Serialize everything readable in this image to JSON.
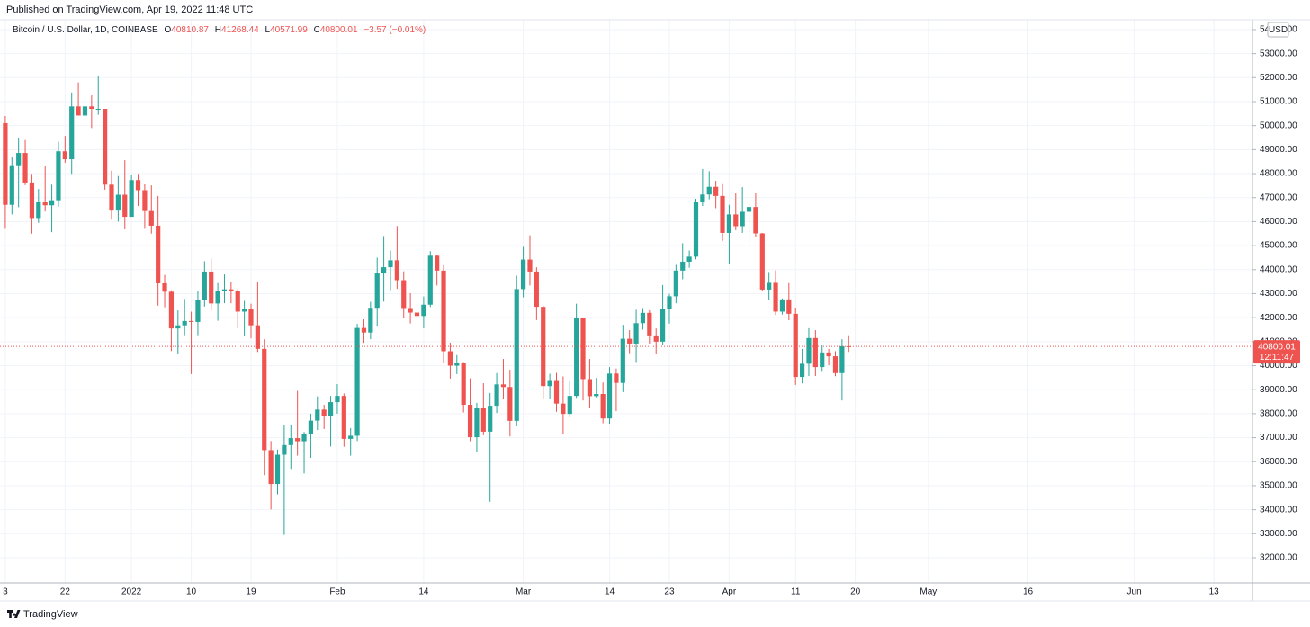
{
  "published": "Published on TradingView.com, Apr 19, 2022 11:48 UTC",
  "brand": "TradingView",
  "chart_data": {
    "type": "candlestick",
    "symbol": "Bitcoin / U.S. Dollar, 1D, COINBASE",
    "ohlc_letters": [
      "O",
      "H",
      "L",
      "C"
    ],
    "change_label": "−3.57 (−0.01%)",
    "currency": "USD",
    "countdown": "12:11:47",
    "up_color": "#26a69a",
    "down_color": "#ef5350",
    "grid": true,
    "xlim": [
      -19.8,
      168.8
    ],
    "xticks": [
      {
        "value": -19,
        "label": "3"
      },
      {
        "value": -10,
        "label": "22"
      },
      {
        "value": 0,
        "label": "2022"
      },
      {
        "value": 9,
        "label": "10"
      },
      {
        "value": 18,
        "label": "19"
      },
      {
        "value": 31,
        "label": "Feb"
      },
      {
        "value": 44,
        "label": "14"
      },
      {
        "value": 59,
        "label": "Mar"
      },
      {
        "value": 72,
        "label": "14"
      },
      {
        "value": 81,
        "label": "23"
      },
      {
        "value": 90,
        "label": "Apr"
      },
      {
        "value": 100,
        "label": "11"
      },
      {
        "value": 109,
        "label": "20"
      },
      {
        "value": 120,
        "label": "May"
      },
      {
        "value": 135,
        "label": "16"
      },
      {
        "value": 151,
        "label": "Jun"
      },
      {
        "value": 163,
        "label": "13"
      }
    ],
    "ylim": [
      30950,
      54410
    ],
    "yticks": [
      {
        "value": 32000,
        "label": "32000.00"
      },
      {
        "value": 33000,
        "label": "33000.00"
      },
      {
        "value": 34000,
        "label": "34000.00"
      },
      {
        "value": 35000,
        "label": "35000.00"
      },
      {
        "value": 36000,
        "label": "36000.00"
      },
      {
        "value": 37000,
        "label": "37000.00"
      },
      {
        "value": 38000,
        "label": "38000.00"
      },
      {
        "value": 39000,
        "label": "39000.00"
      },
      {
        "value": 40000,
        "label": "40000.00"
      },
      {
        "value": 41000,
        "label": "41000.00"
      },
      {
        "value": 42000,
        "label": "42000.00"
      },
      {
        "value": 43000,
        "label": "43000.00"
      },
      {
        "value": 44000,
        "label": "44000.00"
      },
      {
        "value": 45000,
        "label": "45000.00"
      },
      {
        "value": 46000,
        "label": "46000.00"
      },
      {
        "value": 47000,
        "label": "47000.00"
      },
      {
        "value": 48000,
        "label": "48000.00"
      },
      {
        "value": 49000,
        "label": "49000.00"
      },
      {
        "value": 50000,
        "label": "50000.00"
      },
      {
        "value": 51000,
        "label": "51000.00"
      },
      {
        "value": 52000,
        "label": "52000.00"
      },
      {
        "value": 53000,
        "label": "53000.00"
      },
      {
        "value": 54000,
        "label": "54000.00"
      }
    ],
    "x": [
      -19,
      -18,
      -17,
      -16,
      -15,
      -14,
      -13,
      -12,
      -11,
      -10,
      -9,
      -8,
      -7,
      -6,
      -5,
      -4,
      -3,
      -2,
      -1,
      0,
      1,
      2,
      3,
      4,
      5,
      6,
      7,
      8,
      9,
      10,
      11,
      12,
      13,
      14,
      15,
      16,
      17,
      18,
      19,
      20,
      21,
      22,
      23,
      24,
      25,
      26,
      27,
      28,
      29,
      30,
      31,
      32,
      33,
      34,
      35,
      36,
      37,
      38,
      39,
      40,
      41,
      42,
      43,
      44,
      45,
      46,
      47,
      48,
      49,
      50,
      51,
      52,
      53,
      54,
      55,
      56,
      57,
      58,
      59,
      60,
      61,
      62,
      63,
      64,
      65,
      66,
      67,
      68,
      69,
      70,
      71,
      72,
      73,
      74,
      75,
      76,
      77,
      78,
      79,
      80,
      81,
      82,
      83,
      84,
      85,
      86,
      87,
      88,
      89,
      90,
      91,
      92,
      93,
      94,
      95,
      96,
      97,
      98,
      99,
      100,
      101,
      102,
      103,
      104,
      105,
      106,
      107,
      108
    ],
    "open": [
      50100,
      46700,
      48350,
      48860,
      47630,
      46150,
      46830,
      46680,
      46890,
      48930,
      48600,
      50800,
      50420,
      50800,
      50700,
      50700,
      47540,
      46460,
      47120,
      46200,
      47730,
      47310,
      46440,
      45830,
      43430,
      43080,
      41550,
      41680,
      41860,
      41820,
      42740,
      43920,
      42590,
      43100,
      43180,
      43120,
      42250,
      42380,
      41680,
      40700,
      36480,
      35070,
      36290,
      36690,
      36980,
      36850,
      37160,
      37710,
      38170,
      37920,
      38480,
      38740,
      36950,
      37080,
      41570,
      41380,
      42410,
      43840,
      44100,
      44390,
      43560,
      42400,
      42210,
      42070,
      42540,
      44580,
      43960,
      40600,
      40000,
      40100,
      38370,
      37020,
      38250,
      37250,
      38330,
      39220,
      39110,
      37700,
      43190,
      44420,
      43920,
      42450,
      39150,
      39400,
      38420,
      37990,
      38740,
      41980,
      39440,
      38730,
      38820,
      37800,
      39670,
      39280,
      41120,
      40920,
      41770,
      42200,
      41260,
      41000,
      42370,
      42890,
      43960,
      44330,
      44540,
      46820,
      47130,
      47450,
      47070,
      45530,
      46300,
      45810,
      46410,
      46610,
      45510,
      43170,
      43450,
      42250,
      42760,
      42160,
      39530,
      40080,
      41150,
      39940,
      40550,
      40390,
      39690,
      40810.87
    ],
    "high": [
      50400,
      48700,
      49500,
      49400,
      47990,
      47360,
      48300,
      47540,
      49330,
      49570,
      51380,
      51800,
      51150,
      51260,
      52090,
      50700,
      48120,
      47900,
      48560,
      47940,
      47990,
      47560,
      47510,
      47070,
      43780,
      43140,
      42300,
      42780,
      42250,
      43100,
      44350,
      44460,
      43440,
      43800,
      43480,
      43190,
      42700,
      42580,
      43500,
      41100,
      36860,
      36500,
      37520,
      37550,
      38950,
      37240,
      38000,
      38720,
      38370,
      38740,
      39230,
      38840,
      37400,
      41740,
      41930,
      42660,
      44500,
      45400,
      44800,
      45820,
      43930,
      43020,
      42740,
      42880,
      44770,
      44600,
      44190,
      40960,
      40440,
      40150,
      39470,
      38450,
      39270,
      38860,
      39690,
      40280,
      39830,
      43750,
      44950,
      45430,
      44100,
      42500,
      39660,
      39700,
      39550,
      39380,
      42580,
      41990,
      40280,
      39490,
      39300,
      39940,
      39880,
      41700,
      41480,
      42330,
      42400,
      42310,
      41550,
      43360,
      42990,
      44200,
      45100,
      44800,
      46950,
      48190,
      48100,
      47700,
      47600,
      46700,
      47200,
      47440,
      46890,
      47210,
      45530,
      43900,
      43970,
      42800,
      43440,
      42420,
      40700,
      41560,
      41480,
      40880,
      40700,
      40600,
      41100,
      41268.44
    ],
    "low": [
      45700,
      46300,
      46600,
      47520,
      45500,
      45950,
      46420,
      45560,
      46630,
      48450,
      47990,
      50460,
      50200,
      49900,
      50450,
      47330,
      46080,
      46000,
      45680,
      46200,
      46650,
      45700,
      45500,
      42500,
      42430,
      40610,
      40500,
      41270,
      39650,
      41270,
      42460,
      42300,
      41870,
      42600,
      42600,
      41550,
      41250,
      41140,
      40570,
      35440,
      34010,
      34640,
      32950,
      35700,
      36250,
      35510,
      36160,
      37320,
      37360,
      36630,
      38000,
      36620,
      36250,
      36860,
      40950,
      41100,
      41660,
      42670,
      43140,
      43200,
      42000,
      41760,
      41900,
      41560,
      42440,
      43340,
      40100,
      39460,
      39650,
      38050,
      36850,
      36400,
      37100,
      34330,
      38030,
      38600,
      37050,
      37470,
      42850,
      43340,
      41900,
      38640,
      38600,
      38080,
      37170,
      37880,
      38660,
      38550,
      38220,
      38670,
      37600,
      37580,
      38110,
      38900,
      40520,
      40150,
      41500,
      40920,
      40500,
      40880,
      41750,
      42600,
      43600,
      44080,
      44430,
      46650,
      46930,
      46560,
      45200,
      44220,
      45640,
      45530,
      45120,
      45380,
      43120,
      42730,
      42110,
      42130,
      41890,
      39200,
      39260,
      39570,
      39570,
      39780,
      40020,
      39560,
      38550,
      40571.99
    ],
    "close": [
      46700,
      48350,
      48860,
      47630,
      46150,
      46830,
      46680,
      46890,
      48930,
      48600,
      50800,
      50420,
      50800,
      50700,
      50700,
      47540,
      46460,
      47120,
      46200,
      47730,
      47310,
      46440,
      45830,
      43430,
      43080,
      41550,
      41680,
      41860,
      41820,
      42740,
      43920,
      42590,
      43100,
      43180,
      43120,
      42250,
      42380,
      41680,
      40700,
      36480,
      35070,
      36290,
      36690,
      36980,
      36850,
      37160,
      37710,
      38170,
      37920,
      38480,
      38740,
      36950,
      37080,
      41570,
      41380,
      42410,
      43840,
      44100,
      44390,
      43560,
      42400,
      42210,
      42070,
      42540,
      44580,
      43960,
      40600,
      40000,
      40100,
      38370,
      37020,
      38250,
      37250,
      38330,
      39220,
      39110,
      37700,
      43190,
      44420,
      43920,
      42450,
      39150,
      39400,
      38420,
      37990,
      38740,
      41980,
      39440,
      38730,
      38820,
      37800,
      39670,
      39280,
      41120,
      40920,
      41770,
      42200,
      41260,
      41000,
      42370,
      42890,
      43960,
      44330,
      44540,
      46820,
      47130,
      47450,
      47070,
      45530,
      46300,
      45810,
      46410,
      46610,
      45510,
      43170,
      43450,
      42250,
      42760,
      42160,
      39530,
      40080,
      41150,
      39940,
      40550,
      40390,
      39690,
      40810.87,
      40800.01
    ]
  }
}
